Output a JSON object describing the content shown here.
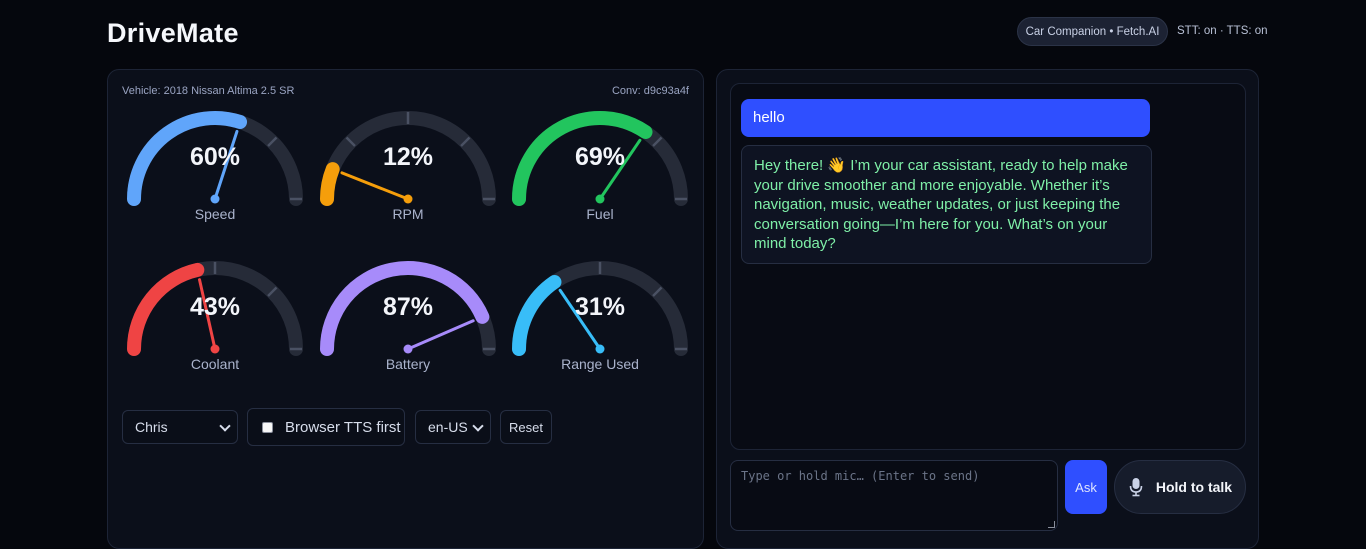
{
  "header": {
    "app_title": "DriveMate",
    "badge": "Car Companion • Fetch.AI",
    "status": "STT: on · TTS: on"
  },
  "dashboard": {
    "vehicle": "Vehicle: 2018 Nissan Altima 2.5 SR",
    "conversation": "Conv: d9c93a4f",
    "gauges": [
      {
        "label": "Speed",
        "value_text": "60%",
        "value": 60,
        "color": "#60a5fa"
      },
      {
        "label": "RPM",
        "value_text": "12%",
        "value": 12,
        "color": "#f59e0b"
      },
      {
        "label": "Fuel",
        "value_text": "69%",
        "value": 69,
        "color": "#22c55e"
      },
      {
        "label": "Coolant",
        "value_text": "43%",
        "value": 43,
        "color": "#ef4444"
      },
      {
        "label": "Battery",
        "value_text": "87%",
        "value": 87,
        "color": "#a78bfa"
      },
      {
        "label": "Range Used",
        "value_text": "31%",
        "value": 31,
        "color": "#38bdf8"
      }
    ]
  },
  "controls": {
    "voice_selected": "Chris",
    "tts_label": "Browser TTS first",
    "tts_checked": false,
    "lang_selected": "en-US",
    "reset_label": "Reset"
  },
  "chat": {
    "messages": [
      {
        "role": "user",
        "text": "hello"
      },
      {
        "role": "assistant",
        "text": "Hey there! 👋 I’m your car assistant, ready to help make your drive smoother and more enjoyable. Whether it’s navigation, music, weather updates, or just keeping the conversation going—I’m here for you. What’s on your mind today?"
      }
    ],
    "input_placeholder": "Type or hold mic… (Enter to send)",
    "ask_label": "Ask",
    "talk_label": "Hold to talk"
  }
}
